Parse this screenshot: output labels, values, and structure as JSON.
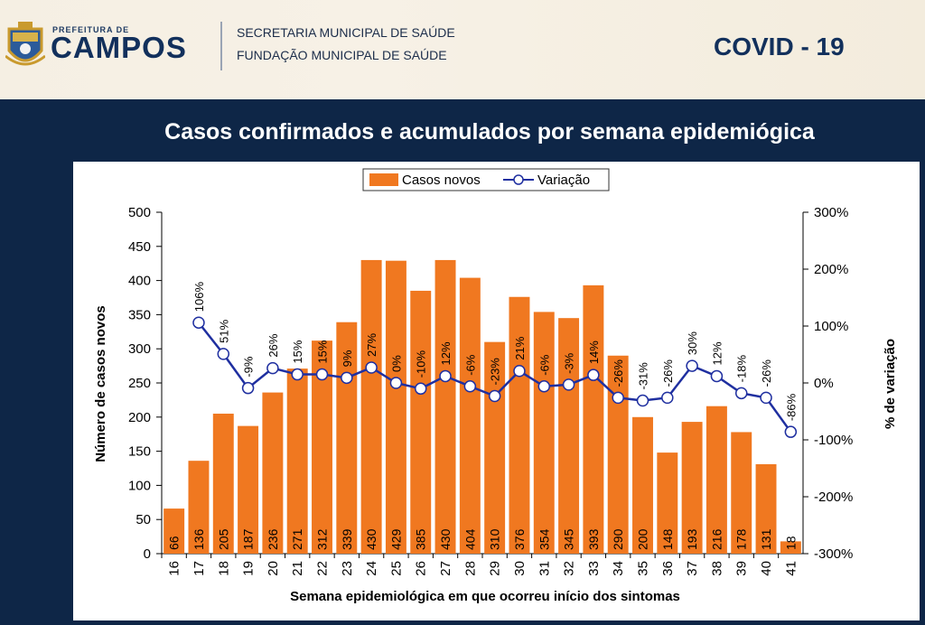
{
  "header": {
    "logo_small": "PREFEITURA DE",
    "logo_big": "CAMPOS",
    "org_line1": "SECRETARIA MUNICIPAL DE SAÚDE",
    "org_line2": "FUNDAÇÃO MUNICIPAL DE  SAÚDE",
    "badge": "COVID - 19"
  },
  "colors": {
    "bar": "#f07820",
    "line": "#1f2fa0",
    "header_bg": "#f5efe3",
    "page_bg": "#0e2647"
  },
  "chart_data": {
    "type": "bar",
    "title": "Casos confirmados e acumulados por semana epidemiógica",
    "xlabel": "Semana epidemiológica em que ocorreu início dos sintomas",
    "ylabel": "Número de casos novos",
    "y2label": "% de variação",
    "ylim": [
      0,
      500
    ],
    "y2lim": [
      -300,
      300
    ],
    "yticks": [
      "0",
      "50",
      "100",
      "150",
      "200",
      "250",
      "300",
      "350",
      "400",
      "450",
      "500"
    ],
    "y2ticks": [
      "-300%",
      "-200%",
      "-100%",
      "0%",
      "100%",
      "200%",
      "300%"
    ],
    "legend_position": "top-center",
    "categories": [
      "16",
      "17",
      "18",
      "19",
      "20",
      "21",
      "22",
      "23",
      "24",
      "25",
      "26",
      "27",
      "28",
      "29",
      "30",
      "31",
      "32",
      "33",
      "34",
      "35",
      "36",
      "37",
      "38",
      "39",
      "40",
      "41"
    ],
    "series": [
      {
        "name": "Casos novos",
        "type": "bar",
        "values": [
          66,
          136,
          205,
          187,
          236,
          271,
          312,
          339,
          430,
          429,
          385,
          430,
          404,
          310,
          376,
          354,
          345,
          393,
          290,
          200,
          148,
          193,
          216,
          178,
          131,
          18
        ],
        "labels": [
          "66",
          "136",
          "205",
          "187",
          "236",
          "271",
          "312",
          "339",
          "430",
          "429",
          "385",
          "430",
          "404",
          "310",
          "376",
          "354",
          "345",
          "393",
          "290",
          "200",
          "148",
          "193",
          "216",
          "178",
          "131",
          "18"
        ]
      },
      {
        "name": "Variação",
        "type": "line",
        "values": [
          null,
          106,
          51,
          -9,
          26,
          15,
          15,
          9,
          27,
          0,
          -10,
          12,
          -6,
          -23,
          21,
          -6,
          -3,
          14,
          -26,
          -31,
          -26,
          30,
          12,
          -18,
          -26,
          -86
        ],
        "labels": [
          "",
          "106%",
          "51%",
          "-9%",
          "26%",
          "15%",
          "15%",
          "9%",
          "27%",
          "0%",
          "-10%",
          "12%",
          "-6%",
          "-23%",
          "21%",
          "-6%",
          "-3%",
          "14%",
          "-26%",
          "-31%",
          "-26%",
          "30%",
          "12%",
          "-18%",
          "-26%",
          "-86%"
        ]
      }
    ]
  }
}
